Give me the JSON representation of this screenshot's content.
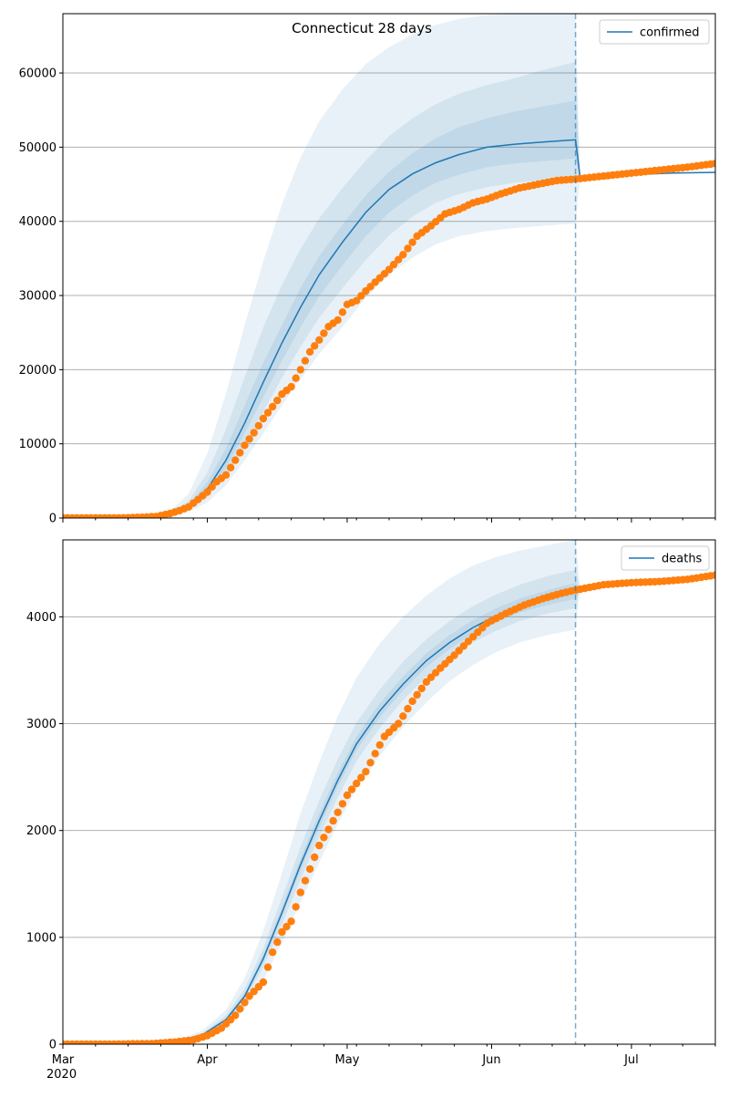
{
  "figure_title": "Connecticut 28 days",
  "colors": {
    "model": "#1f77b4",
    "observed": "#ff7f0e",
    "band": "#1f77b4",
    "grid": "#b0b0b0",
    "forecast_line": "#1f77b4"
  },
  "chart_data": [
    {
      "type": "line",
      "title": "Connecticut 28 days",
      "xlabel": "",
      "ylabel": "",
      "legend": {
        "label": "confirmed",
        "placement": "top-right"
      },
      "grid": "horizontal",
      "xlim": [
        "2020-03-01",
        "2020-07-19"
      ],
      "ylim": [
        0,
        68000
      ],
      "yticks": [
        0,
        10000,
        20000,
        30000,
        40000,
        50000,
        60000
      ],
      "xtick_labels": [],
      "forecast_date": "2020-06-19",
      "model": {
        "x": [
          "2020-03-01",
          "2020-03-10",
          "2020-03-18",
          "2020-03-24",
          "2020-03-28",
          "2020-04-01",
          "2020-04-05",
          "2020-04-09",
          "2020-04-13",
          "2020-04-17",
          "2020-04-21",
          "2020-04-25",
          "2020-04-30",
          "2020-05-05",
          "2020-05-10",
          "2020-05-15",
          "2020-05-20",
          "2020-05-25",
          "2020-05-31",
          "2020-06-06",
          "2020-06-12",
          "2020-06-19",
          "2020-06-20",
          "2020-06-25",
          "2020-07-01",
          "2020-07-10",
          "2020-07-19"
        ],
        "median": [
          0,
          0,
          100,
          400,
          1500,
          3900,
          7800,
          12800,
          18300,
          23600,
          28400,
          32800,
          37200,
          41200,
          44300,
          46400,
          47900,
          49000,
          50000,
          50400,
          50700,
          51000,
          45800,
          46100,
          46300,
          46500,
          46600
        ],
        "bands": [
          {
            "lower": [
              0,
              0,
              0,
              150,
              800,
              2100,
              4400,
              7800,
              11400,
              15200,
              18700,
              22100,
              25800,
              29700,
              32800,
              35100,
              36900,
              38000,
              38700,
              39100,
              39400,
              39700,
              45800,
              46100,
              46300,
              46500,
              46600
            ],
            "upper": [
              0,
              0,
              250,
              900,
              3300,
              8700,
              16800,
              26000,
              34600,
              42300,
              48600,
              53500,
              57800,
              61200,
              63500,
              65200,
              66500,
              67300,
              67800,
              68000,
              68000,
              68000,
              45800,
              46100,
              46300,
              46500,
              46600
            ]
          },
          {
            "lower": [
              0,
              0,
              40,
              250,
              1100,
              2800,
              5800,
              9900,
              14300,
              18900,
              23100,
              27000,
              31000,
              34800,
              38100,
              40600,
              42500,
              43700,
              44600,
              45200,
              45500,
              45800,
              45800,
              46100,
              46300,
              46500,
              46600
            ],
            "upper": [
              0,
              0,
              170,
              650,
              2300,
              6100,
              12000,
              19000,
              25700,
              31400,
              36300,
              40400,
              44500,
              48200,
              51500,
              53900,
              55800,
              57200,
              58400,
              59300,
              60400,
              61500,
              45800,
              46100,
              46300,
              46500,
              46600
            ]
          },
          {
            "lower": [
              0,
              0,
              70,
              320,
              1300,
              3300,
              6800,
              11400,
              16300,
              21200,
              25700,
              29900,
              34100,
              38000,
              41200,
              43500,
              45200,
              46300,
              47300,
              47800,
              48100,
              48500,
              45800,
              46100,
              46300,
              46500,
              46600
            ],
            "upper": [
              0,
              0,
              130,
              500,
              1800,
              4800,
              9400,
              15200,
              20900,
              26000,
              31000,
              35300,
              39600,
              43500,
              46700,
              49200,
              51200,
              52700,
              53900,
              54800,
              55500,
              56300,
              45800,
              46100,
              46300,
              46500,
              46600
            ]
          }
        ]
      },
      "observed": {
        "x": [
          "2020-03-01",
          "2020-03-08",
          "2020-03-14",
          "2020-03-18",
          "2020-03-21",
          "2020-03-24",
          "2020-03-26",
          "2020-03-28",
          "2020-03-30",
          "2020-04-01",
          "2020-04-03",
          "2020-04-05",
          "2020-04-07",
          "2020-04-09",
          "2020-04-11",
          "2020-04-13",
          "2020-04-15",
          "2020-04-17",
          "2020-04-19",
          "2020-04-21",
          "2020-04-23",
          "2020-04-25",
          "2020-04-27",
          "2020-04-29",
          "2020-05-01",
          "2020-05-03",
          "2020-05-05",
          "2020-05-07",
          "2020-05-10",
          "2020-05-13",
          "2020-05-16",
          "2020-05-19",
          "2020-05-22",
          "2020-05-25",
          "2020-05-28",
          "2020-05-31",
          "2020-06-03",
          "2020-06-07",
          "2020-06-11",
          "2020-06-15",
          "2020-06-19",
          "2020-06-25",
          "2020-07-01",
          "2020-07-07",
          "2020-07-13",
          "2020-07-19"
        ],
        "y": [
          0,
          0,
          20,
          100,
          200,
          600,
          1000,
          1500,
          2500,
          3500,
          4900,
          5800,
          7800,
          9800,
          11500,
          13400,
          15000,
          16700,
          17700,
          20000,
          22400,
          24000,
          25800,
          26700,
          28800,
          29300,
          30600,
          31800,
          33500,
          35500,
          38000,
          39400,
          41000,
          41600,
          42500,
          43000,
          43700,
          44500,
          45000,
          45500,
          45700,
          46100,
          46500,
          46900,
          47300,
          47800
        ]
      }
    },
    {
      "type": "line",
      "title": "",
      "xlabel": "",
      "ylabel": "",
      "legend": {
        "label": "deaths",
        "placement": "top-right"
      },
      "grid": "horizontal",
      "xlim": [
        "2020-03-01",
        "2020-07-19"
      ],
      "ylim": [
        0,
        4720
      ],
      "yticks": [
        0,
        1000,
        2000,
        3000,
        4000
      ],
      "xtick_labels": [
        "Mar\n2020",
        "Apr",
        "May",
        "Jun",
        "Jul"
      ],
      "forecast_date": "2020-06-19",
      "model": {
        "x": [
          "2020-03-01",
          "2020-03-20",
          "2020-03-26",
          "2020-03-31",
          "2020-04-05",
          "2020-04-09",
          "2020-04-13",
          "2020-04-17",
          "2020-04-21",
          "2020-04-25",
          "2020-04-29",
          "2020-05-03",
          "2020-05-08",
          "2020-05-13",
          "2020-05-18",
          "2020-05-23",
          "2020-05-28",
          "2020-06-02",
          "2020-06-07",
          "2020-06-13",
          "2020-06-19",
          "2020-06-20",
          "2020-06-25",
          "2020-07-01",
          "2020-07-10",
          "2020-07-19"
        ],
        "median": [
          0,
          5,
          30,
          90,
          230,
          450,
          800,
          1230,
          1680,
          2090,
          2470,
          2810,
          3120,
          3370,
          3590,
          3760,
          3900,
          4010,
          4100,
          4180,
          4250,
          4270,
          4310,
          4340,
          4360,
          4400
        ],
        "bands": [
          {
            "lower": [
              0,
              3,
              20,
              60,
              160,
              330,
              600,
              950,
              1330,
              1700,
              2060,
              2390,
              2700,
              2970,
              3200,
              3400,
              3550,
              3670,
              3760,
              3830,
              3880,
              4270,
              4310,
              4340,
              4360,
              4400
            ],
            "upper": [
              0,
              8,
              45,
              130,
              320,
              620,
              1060,
              1600,
              2160,
              2640,
              3070,
              3430,
              3750,
              4000,
              4200,
              4360,
              4480,
              4560,
              4620,
              4670,
              4720,
              4270,
              4310,
              4340,
              4360,
              4400
            ]
          },
          {
            "lower": [
              0,
              4,
              25,
              75,
              200,
              400,
              720,
              1120,
              1540,
              1940,
              2310,
              2650,
              2960,
              3220,
              3440,
              3620,
              3760,
              3870,
              3960,
              4030,
              4080,
              4270,
              4310,
              4340,
              4360,
              4400
            ],
            "upper": [
              0,
              6,
              35,
              105,
              270,
              520,
              900,
              1370,
              1850,
              2280,
              2670,
              3010,
              3320,
              3580,
              3790,
              3960,
              4100,
              4210,
              4300,
              4380,
              4440,
              4270,
              4310,
              4340,
              4360,
              4400
            ]
          },
          {
            "lower": [
              0,
              4,
              28,
              82,
              215,
              430,
              770,
              1190,
              1630,
              2030,
              2410,
              2750,
              3060,
              3310,
              3530,
              3700,
              3840,
              3950,
              4040,
              4110,
              4170,
              4270,
              4310,
              4340,
              4360,
              4400
            ],
            "upper": [
              0,
              6,
              32,
              98,
              245,
              475,
              840,
              1280,
              1740,
              2160,
              2540,
              2880,
              3190,
              3440,
              3660,
              3830,
              3970,
              4080,
              4170,
              4250,
              4320,
              4270,
              4310,
              4340,
              4360,
              4400
            ]
          }
        ]
      },
      "observed": {
        "x": [
          "2020-03-01",
          "2020-03-10",
          "2020-03-20",
          "2020-03-25",
          "2020-03-29",
          "2020-04-01",
          "2020-04-04",
          "2020-04-07",
          "2020-04-10",
          "2020-04-13",
          "2020-04-15",
          "2020-04-17",
          "2020-04-19",
          "2020-04-21",
          "2020-04-23",
          "2020-04-25",
          "2020-04-27",
          "2020-04-29",
          "2020-05-01",
          "2020-05-03",
          "2020-05-05",
          "2020-05-07",
          "2020-05-09",
          "2020-05-12",
          "2020-05-15",
          "2020-05-18",
          "2020-05-21",
          "2020-05-24",
          "2020-05-27",
          "2020-05-31",
          "2020-06-04",
          "2020-06-08",
          "2020-06-12",
          "2020-06-16",
          "2020-06-19",
          "2020-06-25",
          "2020-07-01",
          "2020-07-07",
          "2020-07-13",
          "2020-07-19"
        ],
        "y": [
          0,
          0,
          5,
          20,
          40,
          80,
          150,
          270,
          450,
          580,
          860,
          1050,
          1150,
          1420,
          1640,
          1860,
          2010,
          2170,
          2330,
          2440,
          2550,
          2720,
          2880,
          3000,
          3210,
          3390,
          3520,
          3640,
          3770,
          3940,
          4030,
          4110,
          4170,
          4220,
          4250,
          4300,
          4320,
          4330,
          4350,
          4390
        ]
      }
    }
  ]
}
